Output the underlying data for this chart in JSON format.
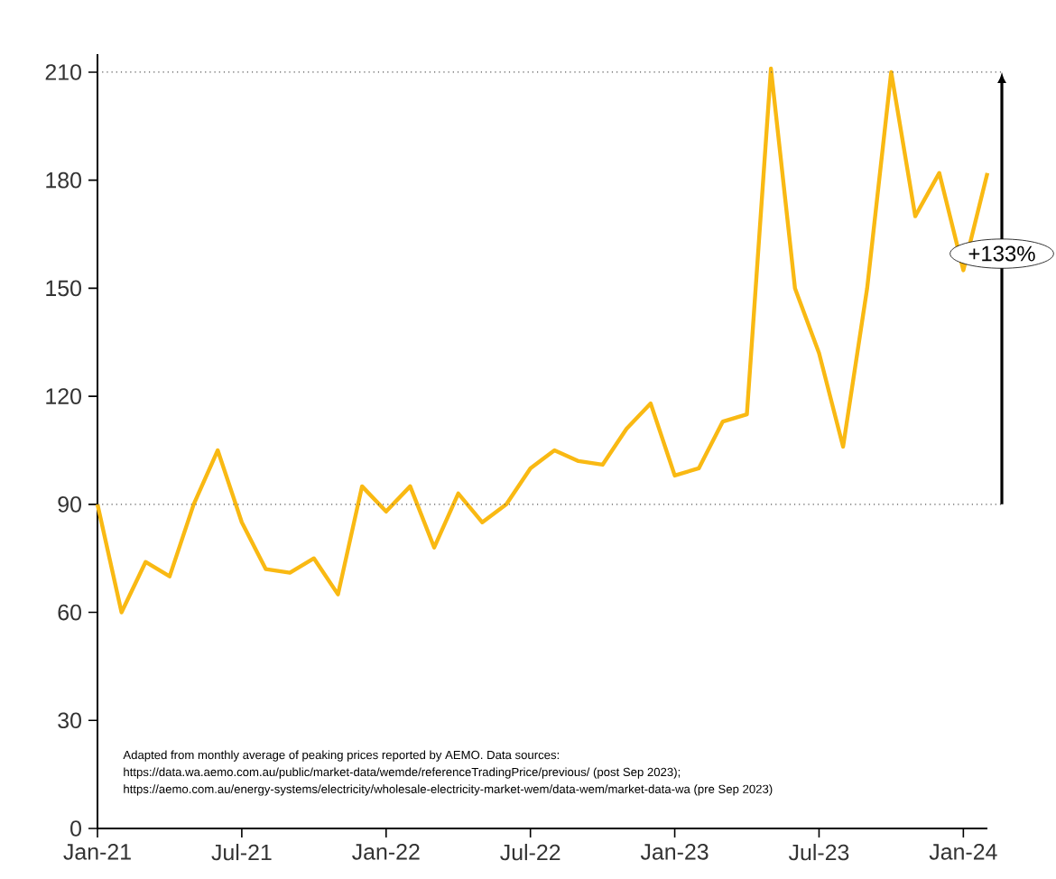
{
  "chart_data": {
    "type": "line",
    "x": [
      "2021-01",
      "2021-02",
      "2021-03",
      "2021-04",
      "2021-05",
      "2021-06",
      "2021-07",
      "2021-08",
      "2021-09",
      "2021-10",
      "2021-11",
      "2021-12",
      "2022-01",
      "2022-02",
      "2022-03",
      "2022-04",
      "2022-05",
      "2022-06",
      "2022-07",
      "2022-08",
      "2022-09",
      "2022-10",
      "2022-11",
      "2022-12",
      "2023-01",
      "2023-02",
      "2023-03",
      "2023-04",
      "2023-05",
      "2023-06",
      "2023-07",
      "2023-08",
      "2023-09",
      "2023-10",
      "2023-11",
      "2023-12",
      "2024-01",
      "2024-02"
    ],
    "series": [
      {
        "color": "#f9b913",
        "values": [
          90,
          60,
          74,
          70,
          90,
          105,
          85,
          72,
          71,
          75,
          65,
          95,
          88,
          95,
          78,
          93,
          85,
          90,
          100,
          105,
          102,
          101,
          111,
          118,
          98,
          100,
          113,
          115,
          211,
          150,
          132,
          106,
          150,
          210,
          170,
          182,
          155,
          182
        ]
      }
    ],
    "xlim": [
      "2021-01",
      "2024-02"
    ],
    "xticks": [
      {
        "value": "2021-01",
        "label": "Jan-21"
      },
      {
        "value": "2021-07",
        "label": "Jul-21"
      },
      {
        "value": "2022-01",
        "label": "Jan-22"
      },
      {
        "value": "2022-07",
        "label": "Jul-22"
      },
      {
        "value": "2023-01",
        "label": "Jan-23"
      },
      {
        "value": "2023-07",
        "label": "Jul-23"
      },
      {
        "value": "2024-01",
        "label": "Jan-24"
      }
    ],
    "ylim": [
      0,
      215
    ],
    "yticks": [
      0,
      30,
      60,
      90,
      120,
      150,
      180,
      210
    ],
    "ref_lines": [
      {
        "axis": "y",
        "value": 90,
        "line_style": "dotted",
        "color": "#555555"
      },
      {
        "axis": "y",
        "value": 210,
        "line_style": "dotted",
        "color": "#555555"
      }
    ],
    "annotations": [
      "+133%",
      "Adapted from monthly average of peaking prices reported by AEMO. Data sources:",
      "https://data.wa.aemo.com.au/public/market-data/wemde/referenceTradingPrice/previous/ (post Sep 2023);",
      "https://aemo.com.au/energy-systems/electricity/wholesale-electricity-market-wem/data-wem/market-data-wa (pre Sep 2023)"
    ],
    "grid": false,
    "marker": "none",
    "line_style": "solid"
  }
}
